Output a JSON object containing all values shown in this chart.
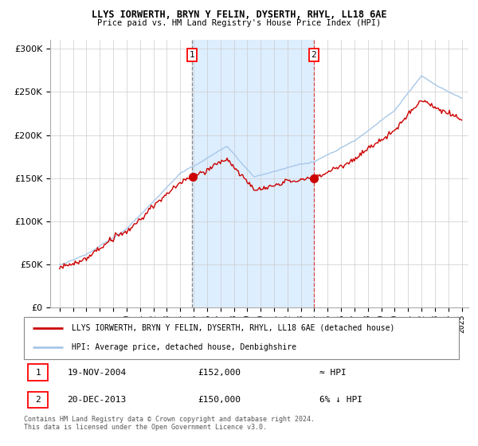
{
  "title1": "LLYS IORWERTH, BRYN Y FELIN, DYSERTH, RHYL, LL18 6AE",
  "title2": "Price paid vs. HM Land Registry's House Price Index (HPI)",
  "legend_line1": "LLYS IORWERTH, BRYN Y FELIN, DYSERTH, RHYL, LL18 6AE (detached house)",
  "legend_line2": "HPI: Average price, detached house, Denbighshire",
  "sale1_date": "19-NOV-2004",
  "sale1_price": 152000,
  "sale1_label": "≈ HPI",
  "sale2_date": "20-DEC-2013",
  "sale2_price": 150000,
  "sale2_label": "6% ↓ HPI",
  "footer": "Contains HM Land Registry data © Crown copyright and database right 2024.\nThis data is licensed under the Open Government Licence v3.0.",
  "hpi_color": "#a8c8e8",
  "property_color": "#cc0000",
  "sale_dot_color": "#cc0000",
  "bg_between_color": "#ddeeff",
  "vline1_color": "#888888",
  "vline2_color": "#dd4444",
  "ylim": [
    0,
    310000
  ],
  "yticks": [
    0,
    50000,
    100000,
    150000,
    200000,
    250000,
    300000
  ],
  "sale1_x": 2004.88,
  "sale2_x": 2013.96
}
